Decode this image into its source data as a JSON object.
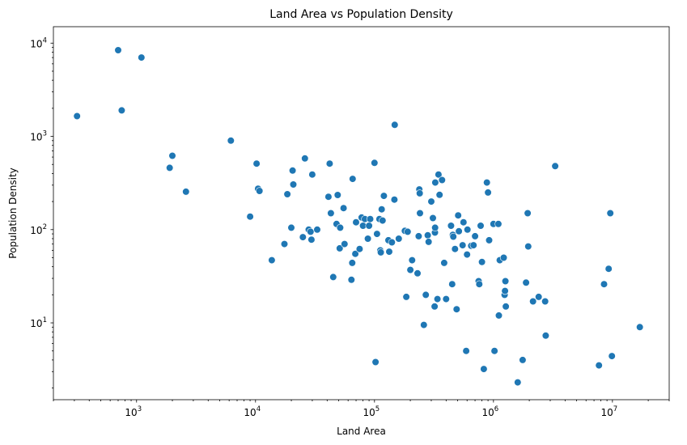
{
  "chart_data": {
    "type": "scatter",
    "title": "Land Area vs Population Density",
    "xlabel": "Land Area",
    "ylabel": "Population Density",
    "x_scale": "log",
    "y_scale": "log",
    "xlim": [
      200,
      30000000
    ],
    "ylim": [
      1.5,
      15000
    ],
    "x_ticks": [
      {
        "value": 1000,
        "base": "10",
        "exp": "3"
      },
      {
        "value": 10000,
        "base": "10",
        "exp": "4"
      },
      {
        "value": 100000,
        "base": "10",
        "exp": "5"
      },
      {
        "value": 1000000,
        "base": "10",
        "exp": "6"
      },
      {
        "value": 10000000,
        "base": "10",
        "exp": "7"
      }
    ],
    "y_ticks": [
      {
        "value": 10,
        "base": "10",
        "exp": "1"
      },
      {
        "value": 100,
        "base": "10",
        "exp": "2"
      },
      {
        "value": 1000,
        "base": "10",
        "exp": "3"
      },
      {
        "value": 10000,
        "base": "10",
        "exp": "4"
      }
    ],
    "grid": false,
    "marker_color": "#1f77b4",
    "points": [
      [
        316,
        1650
      ],
      [
        700,
        8400
      ],
      [
        750,
        1900
      ],
      [
        1100,
        7000
      ],
      [
        1900,
        460
      ],
      [
        2000,
        620
      ],
      [
        2600,
        255
      ],
      [
        6200,
        900
      ],
      [
        9000,
        138
      ],
      [
        10200,
        510
      ],
      [
        10500,
        275
      ],
      [
        10800,
        260
      ],
      [
        13700,
        47
      ],
      [
        17500,
        70
      ],
      [
        18500,
        240
      ],
      [
        20000,
        105
      ],
      [
        20500,
        430
      ],
      [
        20800,
        305
      ],
      [
        25000,
        83
      ],
      [
        26000,
        580
      ],
      [
        28000,
        100
      ],
      [
        29000,
        95
      ],
      [
        29500,
        78
      ],
      [
        30000,
        390
      ],
      [
        33000,
        100
      ],
      [
        41000,
        225
      ],
      [
        42000,
        510
      ],
      [
        43000,
        150
      ],
      [
        45000,
        31
      ],
      [
        48000,
        115
      ],
      [
        49000,
        235
      ],
      [
        51000,
        63
      ],
      [
        51500,
        105
      ],
      [
        55000,
        170
      ],
      [
        56000,
        70
      ],
      [
        64000,
        29
      ],
      [
        65000,
        44
      ],
      [
        65500,
        350
      ],
      [
        69000,
        55
      ],
      [
        70000,
        120
      ],
      [
        75000,
        62
      ],
      [
        78000,
        135
      ],
      [
        80000,
        110
      ],
      [
        83000,
        130
      ],
      [
        88000,
        80
      ],
      [
        90000,
        110
      ],
      [
        92000,
        130
      ],
      [
        100000,
        520
      ],
      [
        102000,
        3.8
      ],
      [
        105000,
        90
      ],
      [
        110000,
        130
      ],
      [
        112000,
        60
      ],
      [
        113000,
        57
      ],
      [
        115000,
        165
      ],
      [
        117000,
        125
      ],
      [
        120000,
        230
      ],
      [
        131000,
        77
      ],
      [
        133000,
        58
      ],
      [
        140000,
        73
      ],
      [
        147000,
        210
      ],
      [
        148000,
        1330
      ],
      [
        160000,
        80
      ],
      [
        180000,
        97
      ],
      [
        185000,
        19
      ],
      [
        190000,
        95
      ],
      [
        200000,
        37
      ],
      [
        207000,
        47
      ],
      [
        230000,
        34
      ],
      [
        235000,
        85
      ],
      [
        238000,
        270
      ],
      [
        240000,
        245
      ],
      [
        241000,
        150
      ],
      [
        260000,
        9.5
      ],
      [
        270000,
        20
      ],
      [
        280000,
        87
      ],
      [
        285000,
        74
      ],
      [
        300000,
        200
      ],
      [
        310000,
        133
      ],
      [
        320000,
        15
      ],
      [
        322000,
        93
      ],
      [
        323000,
        105
      ],
      [
        324000,
        320
      ],
      [
        338000,
        18
      ],
      [
        345000,
        390
      ],
      [
        352000,
        236
      ],
      [
        370000,
        340
      ],
      [
        385000,
        44
      ],
      [
        400000,
        18
      ],
      [
        440000,
        110
      ],
      [
        450000,
        26
      ],
      [
        455000,
        88
      ],
      [
        460000,
        84
      ],
      [
        475000,
        62
      ],
      [
        490000,
        14
      ],
      [
        505000,
        142
      ],
      [
        512000,
        96
      ],
      [
        550000,
        68
      ],
      [
        560000,
        120
      ],
      [
        590000,
        5
      ],
      [
        600000,
        54
      ],
      [
        605000,
        100
      ],
      [
        650000,
        67
      ],
      [
        680000,
        68
      ],
      [
        700000,
        85
      ],
      [
        750000,
        28
      ],
      [
        760000,
        26
      ],
      [
        780000,
        110
      ],
      [
        800000,
        45
      ],
      [
        830000,
        3.2
      ],
      [
        880000,
        320
      ],
      [
        900000,
        250
      ],
      [
        920000,
        77
      ],
      [
        1000000,
        115
      ],
      [
        1020000,
        5
      ],
      [
        1100000,
        115
      ],
      [
        1110000,
        12
      ],
      [
        1130000,
        47
      ],
      [
        1220000,
        50
      ],
      [
        1240000,
        20
      ],
      [
        1250000,
        22
      ],
      [
        1260000,
        28
      ],
      [
        1270000,
        15
      ],
      [
        1600000,
        2.3
      ],
      [
        1760000,
        4
      ],
      [
        1880000,
        27
      ],
      [
        1940000,
        150
      ],
      [
        1960000,
        66
      ],
      [
        2150000,
        17
      ],
      [
        2400000,
        19
      ],
      [
        2720000,
        17
      ],
      [
        2750000,
        7.3
      ],
      [
        3300000,
        480
      ],
      [
        7700000,
        3.5
      ],
      [
        8500000,
        26
      ],
      [
        9300000,
        38
      ],
      [
        9600000,
        150
      ],
      [
        9900000,
        4.4
      ],
      [
        17000000,
        9
      ]
    ]
  }
}
